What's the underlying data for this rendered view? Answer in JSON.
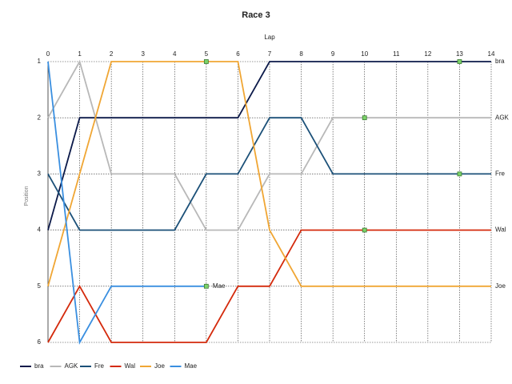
{
  "chart_data": {
    "type": "line",
    "title": "Race 3",
    "x_label": "Lap",
    "y_label": "Position",
    "x": [
      0,
      1,
      2,
      3,
      4,
      5,
      6,
      7,
      8,
      9,
      10,
      11,
      12,
      13,
      14
    ],
    "xlim": [
      0,
      14
    ],
    "xticks": [
      0,
      1,
      2,
      3,
      4,
      5,
      6,
      7,
      8,
      9,
      10,
      11,
      12,
      13,
      14
    ],
    "ylim": [
      6,
      1
    ],
    "yticks": [
      1,
      2,
      3,
      4,
      5,
      6
    ],
    "grid": true,
    "legend": "bottom",
    "series": [
      {
        "name": "bra",
        "color": "#0c1a4a",
        "values": [
          4,
          2,
          2,
          2,
          2,
          2,
          2,
          1,
          1,
          1,
          1,
          1,
          1,
          1,
          1
        ],
        "marker_lap": 13
      },
      {
        "name": "AGK",
        "color": "#b8b8b8",
        "values": [
          2,
          1,
          3,
          3,
          3,
          4,
          4,
          3,
          3,
          2,
          2,
          2,
          2,
          2,
          2
        ],
        "marker_lap": 10
      },
      {
        "name": "Fre",
        "color": "#1b5078",
        "values": [
          3,
          4,
          4,
          4,
          4,
          3,
          3,
          2,
          2,
          3,
          3,
          3,
          3,
          3,
          3
        ],
        "marker_lap": 13
      },
      {
        "name": "Wal",
        "color": "#d42a0c",
        "values": [
          6,
          5,
          6,
          6,
          6,
          6,
          5,
          5,
          4,
          4,
          4,
          4,
          4,
          4,
          4
        ],
        "marker_lap": 10
      },
      {
        "name": "Joe",
        "color": "#f0a634",
        "values": [
          5,
          3,
          1,
          1,
          1,
          1,
          1,
          4,
          5,
          5,
          5,
          5,
          5,
          5,
          5
        ],
        "marker_lap": 5
      },
      {
        "name": "Mae",
        "color": "#3a8fe0",
        "values": [
          1,
          6,
          5,
          5,
          5,
          5,
          null,
          null,
          null,
          null,
          null,
          null,
          null,
          null,
          null
        ],
        "marker_lap": 5
      }
    ]
  }
}
